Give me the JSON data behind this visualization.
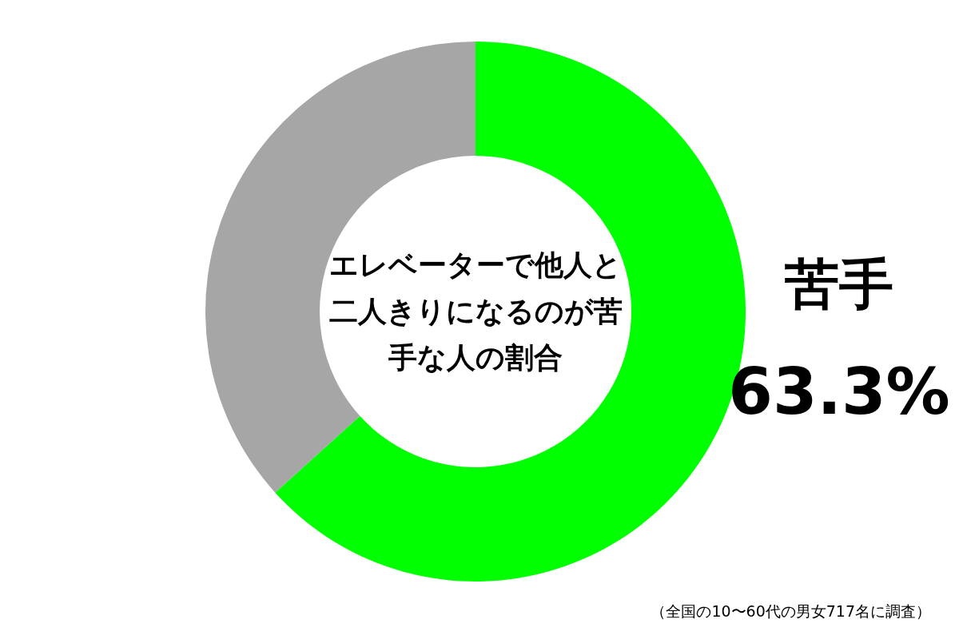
{
  "chart_data": {
    "type": "donut",
    "title": "エレベーターで他人と二人きりになるのが苦手な人の割合",
    "categories": [
      "苦手",
      null
    ],
    "values": [
      63.3,
      36.7
    ],
    "colors": [
      "#00ff00",
      "#a6a6a6"
    ],
    "value_labels": [
      "63.3%",
      null
    ],
    "annotations": [
      "（全国の10〜60代の男女717名に調査）"
    ]
  }
}
